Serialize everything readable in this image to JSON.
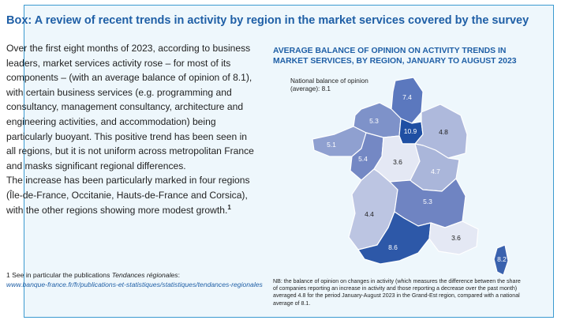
{
  "box": {
    "title_lead": "Box:",
    "title_rest": "A review of recent trends in activity by region in the market services covered by the survey"
  },
  "body": {
    "paragraph_1": "Over the first eight months of 2023, according to business leaders, market services activity rose – for most of its components – (with an average balance of opinion of 8.1), with certain business services (e.g. programming and consultancy, management consultancy, architecture and engineering activities, and accommodation) being particularly buoyant. This positive trend has been seen in all regions, but it is not uniform across metropolitan France and masks significant regional differences.",
    "paragraph_2": "The increase has been particularly marked in four regions (Île-de-France, Occitanie, Hauts-de-France and Corsica), with the other regions showing more modest growth.",
    "footnote_ref": "1"
  },
  "footnote": {
    "number": "1",
    "text": "See in particular the publications",
    "pub_title": "Tendances régionales",
    "link": "www.banque-france.fr/fr/publications-et-statistiques/statistiques/tendances-regionales"
  },
  "chart": {
    "title": "AVERAGE BALANCE OF OPINION ON ACTIVITY TRENDS IN MARKET SERVICES, BY REGION, JANUARY TO AUGUST 2023",
    "national_label": "National balance of opinion (average): 8.1",
    "note": "NB: the balance of opinion on changes in activity (which measures the difference between the share of companies reporting an increase in activity and those reporting a decrease over the past month) averaged 4.8 for the period January-August 2023 in the Grand-Est region, compared with a national average of 8.1."
  },
  "chart_data": {
    "type": "choropleth",
    "national_average": 8.1,
    "regions": [
      {
        "value": 7.4,
        "color": "#5b78be"
      },
      {
        "value": 10.9,
        "color": "#1f4fa3"
      },
      {
        "value": 5.3,
        "color": "#7e92c9"
      },
      {
        "value": 5.1,
        "color": "#8fa0d0"
      },
      {
        "value": 5.4,
        "color": "#7488c4"
      },
      {
        "value": 3.6,
        "color": "#e4e8f4"
      },
      {
        "value": 4.8,
        "color": "#aeb9dc"
      },
      {
        "value": 4.7,
        "color": "#aab6da"
      },
      {
        "value": 4.4,
        "color": "#bcc5e2"
      },
      {
        "value": 5.3,
        "color": "#6f84c2"
      },
      {
        "value": 8.6,
        "color": "#2d58a8"
      },
      {
        "value": 3.6,
        "color": "#e4e8f4"
      },
      {
        "value": 8.2,
        "color": "#3a62ae"
      }
    ]
  }
}
